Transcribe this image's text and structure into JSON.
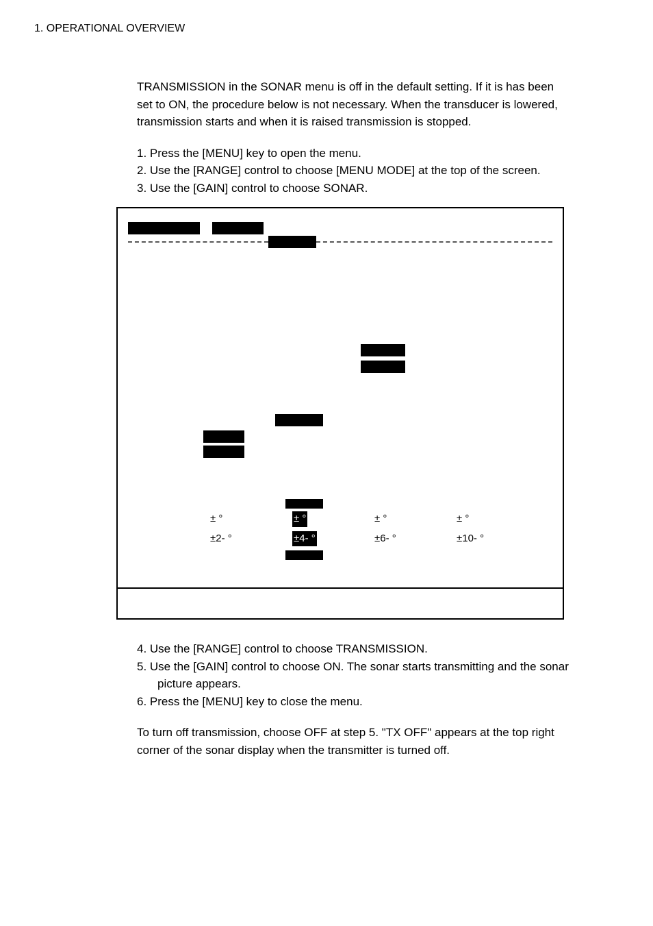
{
  "header": {
    "section_label": "1. OPERATIONAL OVERVIEW"
  },
  "intro": {
    "text": "TRANSMISSION in the SONAR menu is off in the default setting. If it is has been set to ON, the procedure below is not necessary. When the transducer is lowered, transmission starts and when it is raised transmission is stopped."
  },
  "steps_top": {
    "items": [
      {
        "num": "1.",
        "text": "Press the [MENU] key to open the menu."
      },
      {
        "num": "2.",
        "text": "Use the [RANGE] control to choose [MENU MODE] at the top of the screen."
      },
      {
        "num": "3.",
        "text": "Use the [GAIN] control to choose SONAR."
      }
    ]
  },
  "degree_grid": {
    "row1": [
      {
        "text": "±   °",
        "highlighted": false
      },
      {
        "text": "±   °",
        "highlighted": true
      },
      {
        "text": "±   °",
        "highlighted": false
      },
      {
        "text": "±   °",
        "highlighted": false
      }
    ],
    "row2": [
      {
        "text": "±2-   °",
        "highlighted": false
      },
      {
        "text": "±4-   °",
        "highlighted": true
      },
      {
        "text": "±6-   °",
        "highlighted": false
      },
      {
        "text": "±10-   °",
        "highlighted": false
      }
    ]
  },
  "steps_bottom": {
    "items": [
      {
        "num": "4.",
        "text": "Use the [RANGE] control to choose TRANSMISSION."
      },
      {
        "num": "5.",
        "text": "Use the [GAIN] control to choose ON. The sonar starts transmitting and the sonar picture appears."
      },
      {
        "num": "6.",
        "text": "Press the [MENU] key to close the menu."
      }
    ]
  },
  "closing": {
    "text": "To turn off transmission, choose OFF at step 5. \"TX OFF\" appears at the top right corner of the sonar display when the transmitter is turned off."
  },
  "colors": {
    "text": "#000000",
    "background": "#ffffff",
    "block": "#000000"
  }
}
